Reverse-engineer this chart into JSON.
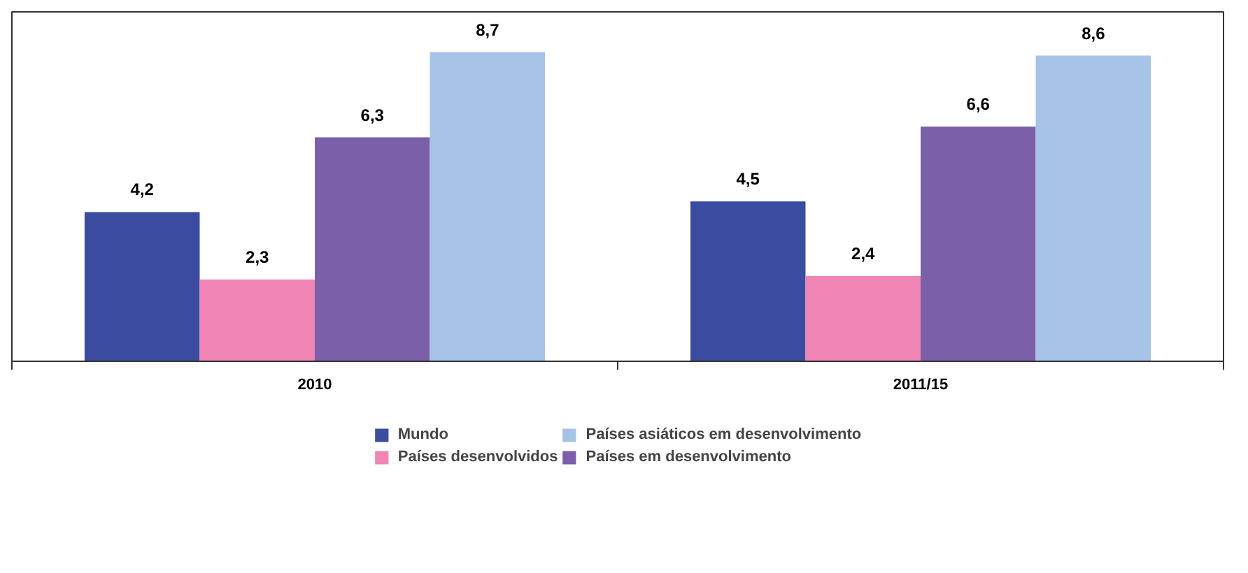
{
  "chart_data": {
    "type": "bar",
    "categories": [
      "2010",
      "2011/15"
    ],
    "series": [
      {
        "name": "Mundo",
        "color": "#3a4ba0",
        "values": [
          4.2,
          4.5
        ],
        "value_labels": [
          "4,2",
          "4,5"
        ]
      },
      {
        "name": "Países desenvolvidos",
        "color": "#ee85b5",
        "values": [
          2.3,
          2.4
        ],
        "value_labels": [
          "2,3",
          "2,4"
        ]
      },
      {
        "name": "Países em desenvolvimento",
        "color": "#7b5fa8",
        "values": [
          6.3,
          6.6
        ],
        "value_labels": [
          "6,3",
          "6,6"
        ]
      },
      {
        "name": "Países asiáticos em desenvolvimento",
        "color": "#a6c3e6",
        "values": [
          8.7,
          8.6
        ],
        "value_labels": [
          "8,7",
          "8,6"
        ]
      }
    ],
    "legend": "bottom"
  }
}
